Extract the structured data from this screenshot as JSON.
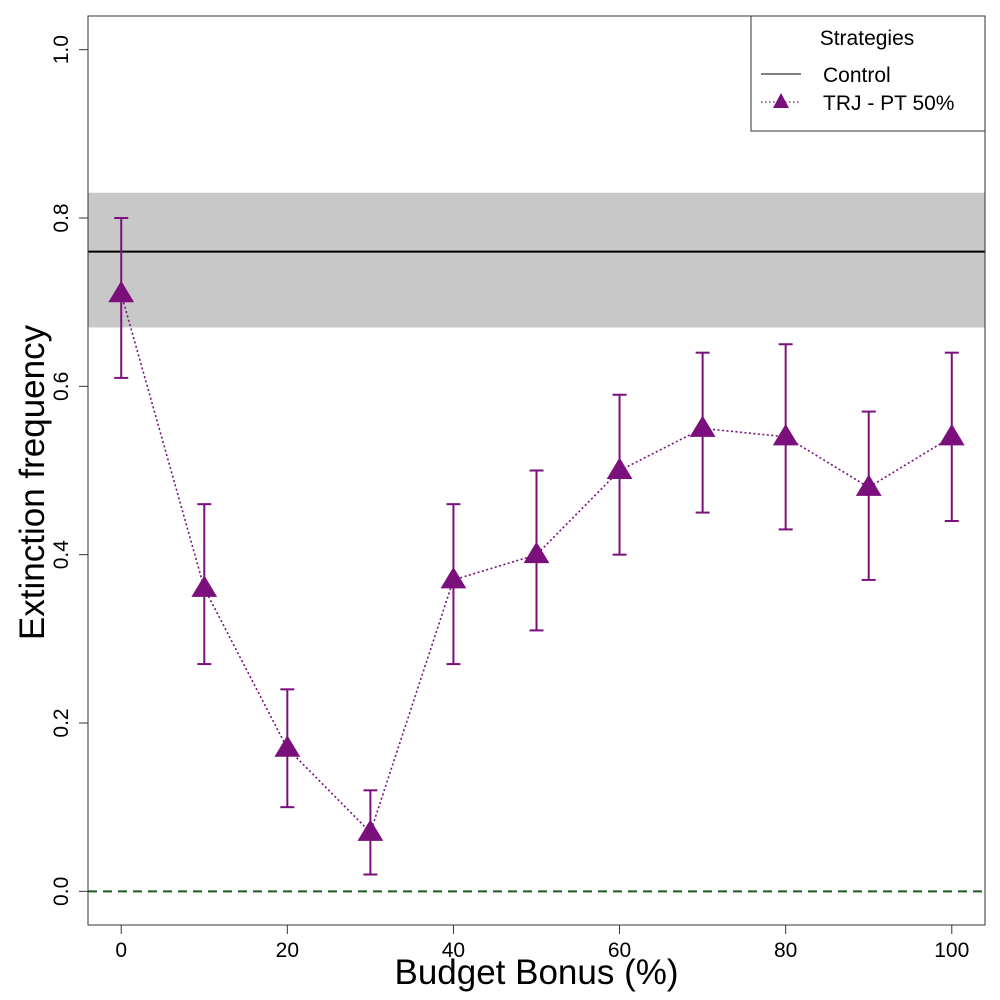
{
  "chart_data": {
    "type": "line",
    "xlabel": "Budget Bonus (%)",
    "ylabel": "Extinction frequency",
    "xlim": [
      -4,
      104
    ],
    "ylim": [
      -0.04,
      1.04
    ],
    "x_ticks": [
      0,
      20,
      40,
      60,
      80,
      100
    ],
    "y_ticks": [
      0.0,
      0.2,
      0.4,
      0.6,
      0.8,
      1.0
    ],
    "y_tick_labels": [
      "0.0",
      "0.2",
      "0.4",
      "0.6",
      "0.8",
      "1.0"
    ],
    "legend": {
      "title": "Strategies",
      "placement": "top-right",
      "entries": [
        "Control",
        "TRJ - PT 50%"
      ]
    },
    "control": {
      "name": "Control",
      "value": 0.76,
      "band": [
        0.67,
        0.83
      ],
      "line_color": "#000000",
      "band_color": "#c8c8c8"
    },
    "reference_line": {
      "value": 0.0,
      "color": "#1a5c1a",
      "style": "dashed"
    },
    "series": [
      {
        "name": "TRJ - PT 50%",
        "color": "#7b0f7b",
        "marker": "triangle",
        "line_style": "dotted",
        "x": [
          0,
          10,
          20,
          30,
          40,
          50,
          60,
          70,
          80,
          90,
          100
        ],
        "values": [
          0.71,
          0.36,
          0.17,
          0.07,
          0.37,
          0.4,
          0.5,
          0.55,
          0.54,
          0.48,
          0.54
        ],
        "error_low": [
          0.61,
          0.27,
          0.1,
          0.02,
          0.27,
          0.31,
          0.4,
          0.45,
          0.43,
          0.37,
          0.44
        ],
        "error_high": [
          0.8,
          0.46,
          0.24,
          0.12,
          0.46,
          0.5,
          0.59,
          0.64,
          0.65,
          0.57,
          0.64
        ]
      }
    ]
  }
}
